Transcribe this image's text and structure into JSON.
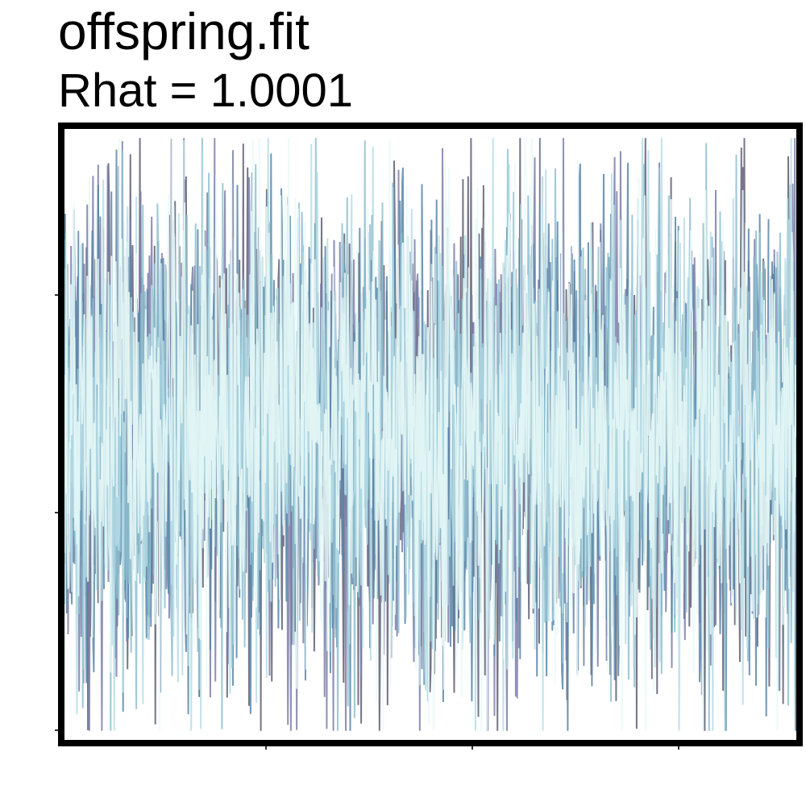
{
  "chart_data": {
    "type": "line",
    "title": "offspring.fit",
    "subtitle": "Rhat = 1.0001",
    "xlabel": "",
    "ylabel": "",
    "grid": false,
    "legend": "none",
    "n_draws": 1000,
    "y_center": 0.5,
    "y_sd": 0.19,
    "series": [
      {
        "color": "#5f5f74",
        "seed": 11
      },
      {
        "color": "#7b7fa8",
        "seed": 23
      },
      {
        "color": "#5b86a8",
        "seed": 37
      },
      {
        "color": "#8fbfd0",
        "seed": 41
      },
      {
        "color": "#b7dde6",
        "seed": 53
      },
      {
        "color": "#eafaf8",
        "seed": 67
      }
    ]
  }
}
